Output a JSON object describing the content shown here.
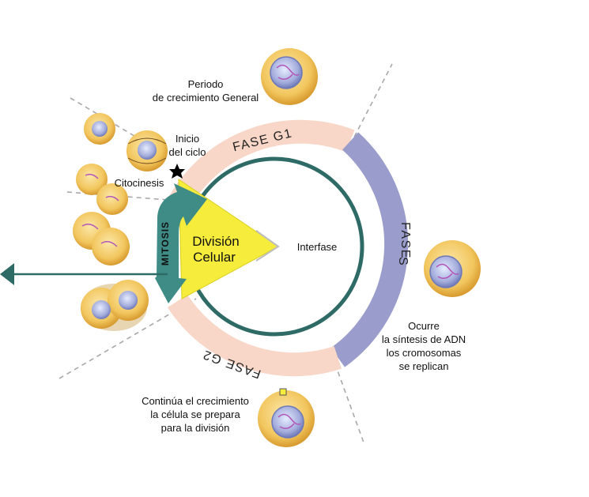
{
  "labels": {
    "periodo_line1": "Periodo",
    "periodo_line2": "de crecimiento General",
    "inicio_line1": "Inicio",
    "inicio_line2": "del ciclo",
    "citocinesis": "Citocinesis",
    "division_line1": "División",
    "division_line2": "Celular",
    "mitosis": "MITOSIS",
    "interfase": "Interfase",
    "fase_g1": "FASE  G1",
    "fase_s_word": "FASE",
    "fase_s_letter": "S",
    "fase_g2": "FASE  G2",
    "ocurre_line1": "Ocurre",
    "ocurre_line2": "la síntesis de ADN",
    "ocurre_line3": "los cromosomas",
    "ocurre_line4": "se replican",
    "continua_line1": "Continúa el crecimiento",
    "continua_line2": "la célula se prepara",
    "continua_line3": "para la división"
  },
  "colors": {
    "g1_g2_band": "#f8d7c8",
    "s_band": "#9a9ccb",
    "inner_ring": "#2e6b66",
    "arrow": "#3f8c86",
    "division_triangle": "#f6ec3c",
    "dashed_line": "#a8a8a8",
    "cell_fill": "#f2c65e"
  },
  "icons": [
    "star-icon",
    "cell-icon",
    "dividing-cell-icon"
  ]
}
